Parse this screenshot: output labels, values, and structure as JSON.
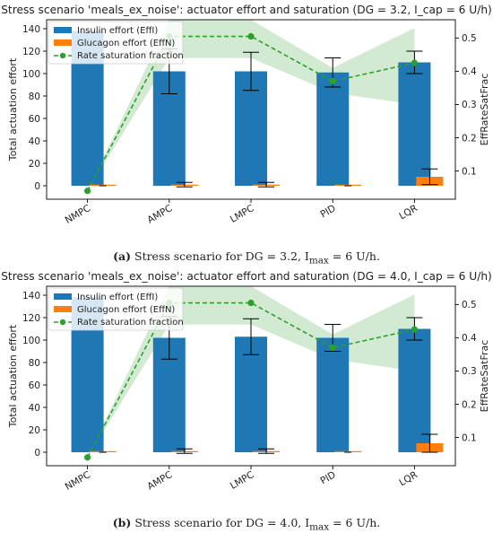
{
  "panels": [
    {
      "caption_tag": "(a)",
      "caption_text": "Stress scenario for DG = 3.2, I",
      "caption_sub": "max",
      "caption_tail": " = 6 U/h.",
      "chart_data": {
        "type": "bar",
        "title": "Stress scenario 'meals_ex_noise': actuator effort and saturation (DG = 3.2, I_cap = 6 U/h)",
        "categories": [
          "NMPC",
          "AMPC",
          "LMPC",
          "PID",
          "LQR"
        ],
        "ylabel": "Total actuation effort",
        "ylabel_right": "EffRateSatFrac",
        "ylim": [
          -12,
          148
        ],
        "ylim_right": [
          0.015,
          0.555
        ],
        "yticks": [
          0,
          20,
          40,
          60,
          80,
          100,
          120,
          140
        ],
        "yticks_right": [
          0.1,
          0.2,
          0.3,
          0.4,
          0.5
        ],
        "legend": "top-left",
        "series": [
          {
            "name": "Insulin effort (EffI)",
            "kind": "bar",
            "color": "#1f77b4",
            "values": [
              138,
              102,
              102,
              101,
              110
            ],
            "err": [
              0,
              20,
              17,
              13,
              10
            ]
          },
          {
            "name": "Glucagon effort (EffN)",
            "kind": "bar",
            "color": "#ff7f0e",
            "values": [
              0,
              1,
              1,
              0,
              8
            ],
            "err": [
              0,
              2,
              2,
              0,
              7
            ]
          },
          {
            "name": "Rate saturation fraction",
            "kind": "line",
            "axis": "right",
            "color": "#2ca02c",
            "values": [
              0.04,
              0.505,
              0.505,
              0.37,
              0.425
            ],
            "band_low": [
              0.04,
              0.44,
              0.44,
              0.335,
              0.3
            ],
            "band_high": [
              0.04,
              0.555,
              0.555,
              0.41,
              0.53
            ]
          }
        ]
      }
    },
    {
      "caption_tag": "(b)",
      "caption_text": "Stress scenario for DG = 4.0, I",
      "caption_sub": "max",
      "caption_tail": " = 6 U/h.",
      "chart_data": {
        "type": "bar",
        "title": "Stress scenario 'meals_ex_noise': actuator effort and saturation (DG = 4.0, I_cap = 6 U/h)",
        "categories": [
          "NMPC",
          "AMPC",
          "LMPC",
          "PID",
          "LQR"
        ],
        "ylabel": "Total actuation effort",
        "ylabel_right": "EffRateSatFrac",
        "ylim": [
          -12,
          148
        ],
        "ylim_right": [
          0.015,
          0.555
        ],
        "yticks": [
          0,
          20,
          40,
          60,
          80,
          100,
          120,
          140
        ],
        "yticks_right": [
          0.1,
          0.2,
          0.3,
          0.4,
          0.5
        ],
        "legend": "top-left",
        "series": [
          {
            "name": "Insulin effort (EffI)",
            "kind": "bar",
            "color": "#1f77b4",
            "values": [
              138,
              102,
              103,
              102,
              110
            ],
            "err": [
              0,
              19,
              16,
              12,
              10
            ]
          },
          {
            "name": "Glucagon effort (EffN)",
            "kind": "bar",
            "color": "#ff7f0e",
            "values": [
              0,
              1,
              1,
              0,
              8
            ],
            "err": [
              0,
              2,
              2,
              0,
              8
            ]
          },
          {
            "name": "Rate saturation fraction",
            "kind": "line",
            "axis": "right",
            "color": "#2ca02c",
            "values": [
              0.04,
              0.505,
              0.505,
              0.37,
              0.425
            ],
            "band_low": [
              0.04,
              0.44,
              0.44,
              0.335,
              0.3
            ],
            "band_high": [
              0.04,
              0.555,
              0.555,
              0.41,
              0.53
            ]
          }
        ]
      }
    }
  ]
}
